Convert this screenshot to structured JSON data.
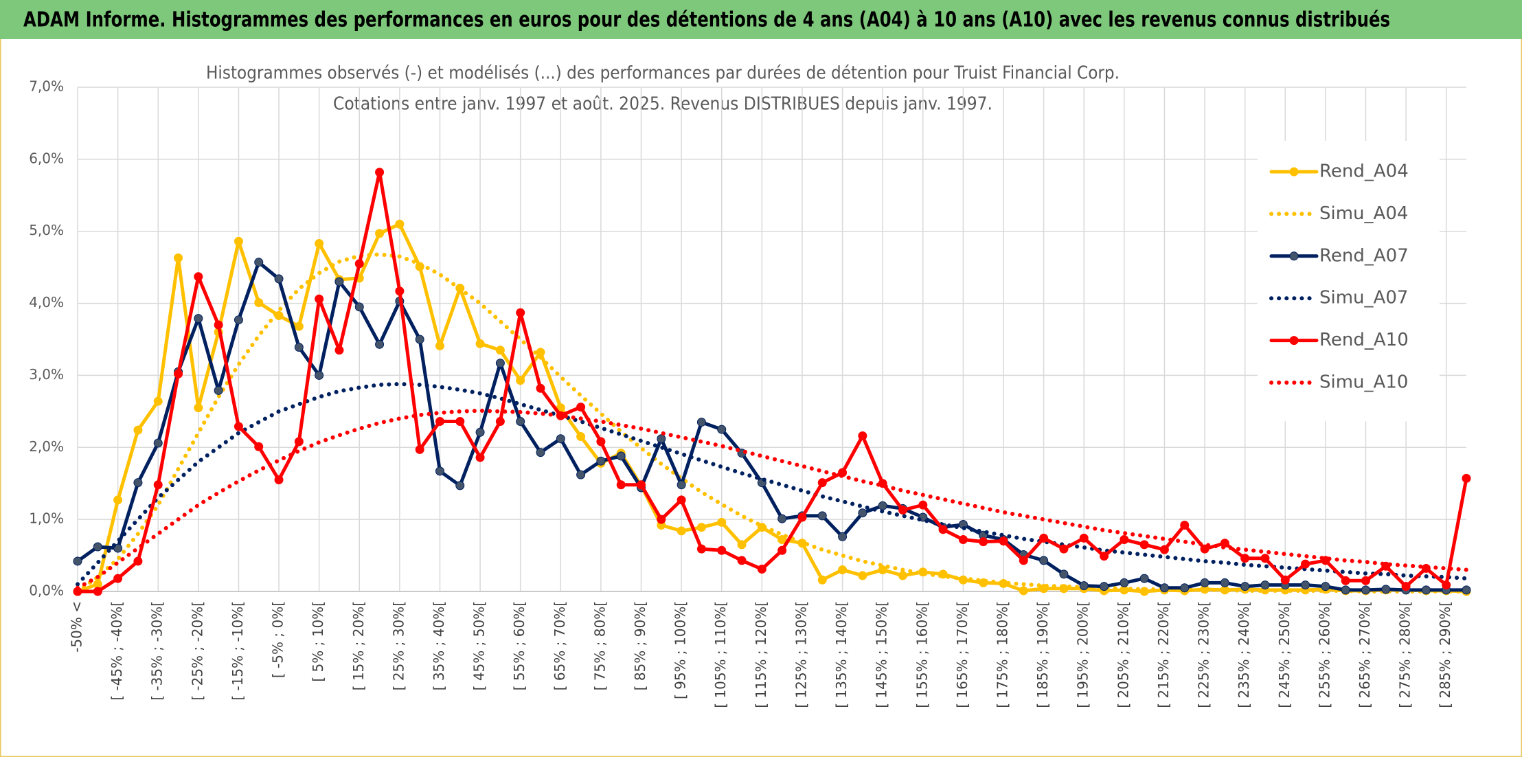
{
  "header": {
    "title": "ADAM Informe. Histogrammes des performances en euros pour des détentions de 4 ans (A04) à 10 ans (A10) avec les revenus connus distribués"
  },
  "chart_data": {
    "type": "line",
    "title": "Histogrammes observés (-) et modélisés (...) des performances par durées de détention pour Truist Financial Corp.",
    "subtitle": "Cotations entre janv. 1997 et août. 2025. Revenus DISTRIBUES depuis janv. 1997.",
    "categories": [
      "-50% <",
      null,
      "[ -45% ; -40%[",
      null,
      "[ -35% ; -30%[",
      null,
      "[ -25% ; -20%[",
      null,
      "[ -15% ; -10%[",
      null,
      "[ -5% ; 0%[",
      null,
      "[ 5% ; 10%[",
      null,
      "[ 15% ; 20%[",
      null,
      "[ 25% ; 30%[",
      null,
      "[ 35% ; 40%[",
      null,
      "[ 45% ; 50%[",
      null,
      "[ 55% ; 60%[",
      null,
      "[ 65% ; 70%[",
      null,
      "[ 75% ; 80%[",
      null,
      "[ 85% ; 90%[",
      null,
      "[ 95% ; 100%[",
      null,
      "[ 105% ; 110%[",
      null,
      "[ 115% ; 120%[",
      null,
      "[ 125% ; 130%[",
      null,
      "[ 135% ; 140%[",
      null,
      "[ 145% ; 150%[",
      null,
      "[ 155% ; 160%[",
      null,
      "[ 165% ; 170%[",
      null,
      "[ 175% ; 180%[",
      null,
      "[ 185% ; 190%[",
      null,
      "[ 195% ; 200%[",
      null,
      "[ 205% ; 210%[",
      null,
      "[ 215% ; 220%[",
      null,
      "[ 225% ; 230%[",
      null,
      "[ 235% ; 240%[",
      null,
      "[ 245% ; 250%[",
      null,
      "[ 255% ; 260%[",
      null,
      "[ 265% ; 270%[",
      null,
      "[ 275% ; 280%[",
      null,
      "[ 285% ; 290%[",
      null
    ],
    "series": [
      {
        "name": "Rend_A04",
        "color": "#ffc000",
        "line_style": "solid",
        "markers": true,
        "values": [
          0,
          0.1,
          1.27,
          2.24,
          2.64,
          4.63,
          2.55,
          3.6,
          4.86,
          4.01,
          3.83,
          3.68,
          4.83,
          4.33,
          4.35,
          4.97,
          5.1,
          4.51,
          3.41,
          4.21,
          3.44,
          3.35,
          2.93,
          3.32,
          2.55,
          2.15,
          1.78,
          1.92,
          1.47,
          0.92,
          0.84,
          0.89,
          0.96,
          0.65,
          0.89,
          0.72,
          0.67,
          0.16,
          0.3,
          0.22,
          0.3,
          0.22,
          0.27,
          0.24,
          0.16,
          0.12,
          0.11,
          0.01,
          0.04,
          0.04,
          0.04,
          0.01,
          0.02,
          0,
          0.02,
          0.01,
          0.03,
          0.02,
          0.03,
          0.02,
          0.02,
          0.02,
          0.03,
          0.01,
          0.01,
          0.02,
          0.02,
          0.01,
          0.01,
          0
        ]
      },
      {
        "name": "Simu_A04",
        "color": "#ffc000",
        "line_style": "dotted",
        "markers": false,
        "values": [
          0,
          0.2,
          0.45,
          0.8,
          1.2,
          1.7,
          2.2,
          2.7,
          3.15,
          3.55,
          3.9,
          4.2,
          4.42,
          4.58,
          4.66,
          4.68,
          4.65,
          4.55,
          4.4,
          4.2,
          4.0,
          3.75,
          3.5,
          3.25,
          2.98,
          2.72,
          2.47,
          2.22,
          1.99,
          1.77,
          1.57,
          1.38,
          1.21,
          1.05,
          0.91,
          0.79,
          0.68,
          0.58,
          0.5,
          0.42,
          0.36,
          0.3,
          0.25,
          0.21,
          0.18,
          0.15,
          0.12,
          0.1,
          0.08,
          0.07,
          0.06,
          0.05,
          0.04,
          0.03,
          0.03,
          0.02,
          0.02,
          0.02,
          0.01,
          0.01,
          0.01,
          0.01,
          0.01,
          0.01,
          0,
          0,
          0,
          0,
          0,
          0
        ]
      },
      {
        "name": "Rend_A07",
        "color": "#002060",
        "line_style": "solid",
        "markers": true,
        "values": [
          0.42,
          0.62,
          0.6,
          1.51,
          2.06,
          3.05,
          3.79,
          2.79,
          3.77,
          4.57,
          4.34,
          3.39,
          3.0,
          4.3,
          3.95,
          3.43,
          4.03,
          3.5,
          1.67,
          1.47,
          2.21,
          3.17,
          2.36,
          1.93,
          2.12,
          1.62,
          1.81,
          1.88,
          1.44,
          2.12,
          1.48,
          2.35,
          2.25,
          1.92,
          1.51,
          1.01,
          1.05,
          1.05,
          0.76,
          1.09,
          1.19,
          1.15,
          1.03,
          0.89,
          0.93,
          0.78,
          0.72,
          0.51,
          0.43,
          0.24,
          0.08,
          0.07,
          0.12,
          0.18,
          0.05,
          0.05,
          0.12,
          0.12,
          0.07,
          0.09,
          0.09,
          0.09,
          0.07,
          0.02,
          0.02,
          0.03,
          0.02,
          0.02,
          0.02,
          0.02
        ]
      },
      {
        "name": "Simu_A07",
        "color": "#002060",
        "line_style": "dotted",
        "markers": false,
        "values": [
          0.1,
          0.4,
          0.7,
          1.0,
          1.3,
          1.55,
          1.8,
          2.0,
          2.2,
          2.35,
          2.5,
          2.6,
          2.7,
          2.78,
          2.83,
          2.87,
          2.88,
          2.87,
          2.84,
          2.8,
          2.75,
          2.68,
          2.6,
          2.52,
          2.44,
          2.36,
          2.27,
          2.18,
          2.09,
          2.0,
          1.91,
          1.82,
          1.73,
          1.64,
          1.56,
          1.48,
          1.4,
          1.32,
          1.25,
          1.18,
          1.11,
          1.05,
          0.99,
          0.93,
          0.88,
          0.83,
          0.78,
          0.73,
          0.69,
          0.65,
          0.61,
          0.57,
          0.54,
          0.51,
          0.48,
          0.45,
          0.42,
          0.4,
          0.37,
          0.35,
          0.33,
          0.31,
          0.29,
          0.27,
          0.25,
          0.24,
          0.22,
          0.21,
          0.2,
          0.18
        ]
      },
      {
        "name": "Rend_A10",
        "color": "#ff0000",
        "line_style": "solid",
        "markers": true,
        "values": [
          0,
          0,
          0.18,
          0.42,
          1.48,
          3.02,
          4.37,
          3.7,
          2.29,
          2.01,
          1.55,
          2.08,
          4.06,
          3.35,
          4.55,
          5.82,
          4.17,
          1.97,
          2.36,
          2.36,
          1.86,
          2.36,
          3.87,
          2.82,
          2.44,
          2.56,
          2.08,
          1.48,
          1.48,
          1.0,
          1.27,
          0.59,
          0.57,
          0.43,
          0.31,
          0.57,
          1.03,
          1.51,
          1.65,
          2.16,
          1.5,
          1.13,
          1.2,
          0.86,
          0.72,
          0.69,
          0.7,
          0.43,
          0.74,
          0.59,
          0.74,
          0.49,
          0.72,
          0.65,
          0.58,
          0.92,
          0.59,
          0.67,
          0.46,
          0.46,
          0.16,
          0.38,
          0.43,
          0.15,
          0.15,
          0.35,
          0.07,
          0.32,
          0.09,
          1.57
        ]
      },
      {
        "name": "Simu_A10",
        "color": "#ff0000",
        "line_style": "dotted",
        "markers": false,
        "values": [
          0.05,
          0.2,
          0.4,
          0.6,
          0.8,
          1.0,
          1.2,
          1.37,
          1.53,
          1.68,
          1.82,
          1.95,
          2.07,
          2.17,
          2.26,
          2.34,
          2.4,
          2.45,
          2.48,
          2.5,
          2.51,
          2.5,
          2.49,
          2.47,
          2.44,
          2.4,
          2.36,
          2.31,
          2.26,
          2.2,
          2.14,
          2.08,
          2.02,
          1.95,
          1.88,
          1.81,
          1.74,
          1.67,
          1.6,
          1.53,
          1.47,
          1.4,
          1.34,
          1.28,
          1.22,
          1.16,
          1.1,
          1.05,
          1.0,
          0.95,
          0.9,
          0.85,
          0.81,
          0.77,
          0.73,
          0.69,
          0.65,
          0.61,
          0.58,
          0.55,
          0.52,
          0.49,
          0.46,
          0.43,
          0.41,
          0.38,
          0.36,
          0.34,
          0.32,
          0.3
        ]
      }
    ],
    "ylim": [
      0,
      7
    ],
    "yticks": [
      {
        "value": 0,
        "label": "0,0%"
      },
      {
        "value": 1,
        "label": "1,0%"
      },
      {
        "value": 2,
        "label": "2,0%"
      },
      {
        "value": 3,
        "label": "3,0%"
      },
      {
        "value": 4,
        "label": "4,0%"
      },
      {
        "value": 5,
        "label": "5,0%"
      },
      {
        "value": 6,
        "label": "6,0%"
      },
      {
        "value": 7,
        "label": "7,0%"
      }
    ],
    "grid": true,
    "legend": "right"
  }
}
